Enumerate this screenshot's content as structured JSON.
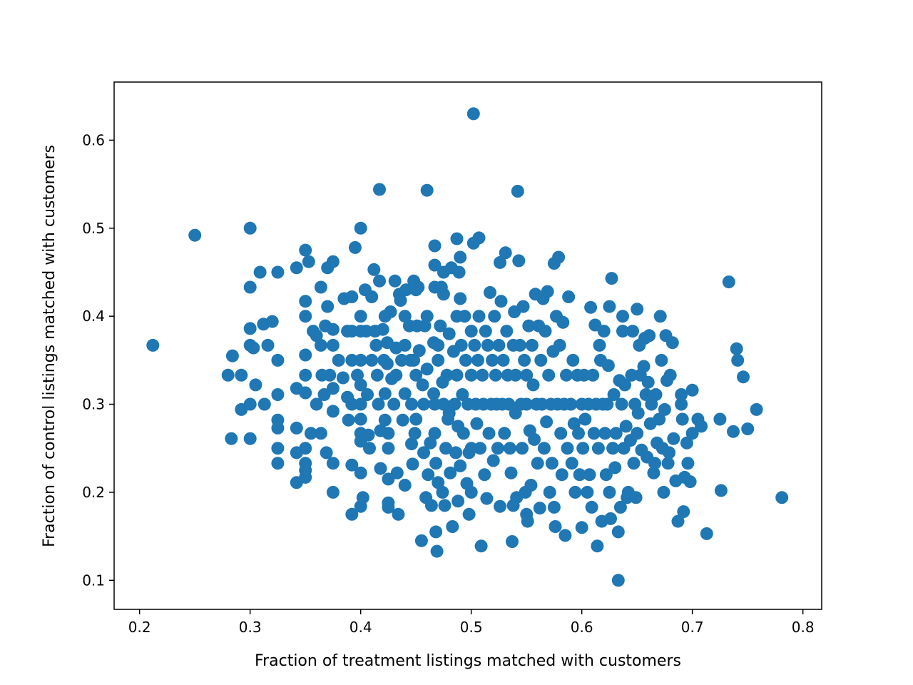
{
  "chart_data": {
    "type": "scatter",
    "xlabel": "Fraction of treatment listings matched with customers",
    "ylabel": "Fraction of control listings matched with customers",
    "xlim": [
      0.177,
      0.817
    ],
    "ylim": [
      0.067,
      0.666
    ],
    "xticks": [
      "0.2",
      "0.3",
      "0.4",
      "0.5",
      "0.6",
      "0.7",
      "0.8"
    ],
    "yticks": [
      "0.1",
      "0.2",
      "0.3",
      "0.4",
      "0.5",
      "0.6"
    ],
    "grid": false,
    "marker_color": "#1f77b4",
    "points": [
      [
        0.212,
        0.367
      ],
      [
        0.25,
        0.492
      ],
      [
        0.28,
        0.333
      ],
      [
        0.283,
        0.261
      ],
      [
        0.284,
        0.355
      ],
      [
        0.292,
        0.294
      ],
      [
        0.292,
        0.333
      ],
      [
        0.3,
        0.5
      ],
      [
        0.3,
        0.433
      ],
      [
        0.3,
        0.386
      ],
      [
        0.3,
        0.367
      ],
      [
        0.3,
        0.3
      ],
      [
        0.3,
        0.261
      ],
      [
        0.303,
        0.364
      ],
      [
        0.305,
        0.322
      ],
      [
        0.309,
        0.45
      ],
      [
        0.312,
        0.391
      ],
      [
        0.313,
        0.3
      ],
      [
        0.316,
        0.367
      ],
      [
        0.32,
        0.394
      ],
      [
        0.325,
        0.45
      ],
      [
        0.325,
        0.35
      ],
      [
        0.325,
        0.311
      ],
      [
        0.325,
        0.282
      ],
      [
        0.325,
        0.273
      ],
      [
        0.325,
        0.25
      ],
      [
        0.325,
        0.233
      ],
      [
        0.342,
        0.455
      ],
      [
        0.342,
        0.318
      ],
      [
        0.342,
        0.273
      ],
      [
        0.342,
        0.245
      ],
      [
        0.342,
        0.211
      ],
      [
        0.35,
        0.475
      ],
      [
        0.35,
        0.417
      ],
      [
        0.35,
        0.4
      ],
      [
        0.35,
        0.356
      ],
      [
        0.35,
        0.333
      ],
      [
        0.35,
        0.313
      ],
      [
        0.35,
        0.25
      ],
      [
        0.35,
        0.233
      ],
      [
        0.35,
        0.225
      ],
      [
        0.35,
        0.217
      ],
      [
        0.353,
        0.462
      ],
      [
        0.355,
        0.267
      ],
      [
        0.357,
        0.383
      ],
      [
        0.36,
        0.3
      ],
      [
        0.36,
        0.378
      ],
      [
        0.364,
        0.367
      ],
      [
        0.364,
        0.267
      ],
      [
        0.364,
        0.433
      ],
      [
        0.365,
        0.333
      ],
      [
        0.367,
        0.311
      ],
      [
        0.368,
        0.389
      ],
      [
        0.369,
        0.245
      ],
      [
        0.37,
        0.455
      ],
      [
        0.37,
        0.411
      ],
      [
        0.372,
        0.333
      ],
      [
        0.375,
        0.462
      ],
      [
        0.375,
        0.385
      ],
      [
        0.375,
        0.367
      ],
      [
        0.375,
        0.318
      ],
      [
        0.375,
        0.292
      ],
      [
        0.375,
        0.233
      ],
      [
        0.375,
        0.2
      ],
      [
        0.38,
        0.35
      ],
      [
        0.384,
        0.33
      ],
      [
        0.385,
        0.42
      ],
      [
        0.388,
        0.383
      ],
      [
        0.388,
        0.308
      ],
      [
        0.389,
        0.282
      ],
      [
        0.392,
        0.422
      ],
      [
        0.392,
        0.383
      ],
      [
        0.392,
        0.35
      ],
      [
        0.392,
        0.3
      ],
      [
        0.392,
        0.231
      ],
      [
        0.392,
        0.175
      ],
      [
        0.395,
        0.478
      ],
      [
        0.397,
        0.333
      ],
      [
        0.4,
        0.5
      ],
      [
        0.4,
        0.4
      ],
      [
        0.4,
        0.383
      ],
      [
        0.4,
        0.35
      ],
      [
        0.4,
        0.322
      ],
      [
        0.4,
        0.3
      ],
      [
        0.4,
        0.283
      ],
      [
        0.4,
        0.267
      ],
      [
        0.4,
        0.258
      ],
      [
        0.4,
        0.222
      ],
      [
        0.4,
        0.184
      ],
      [
        0.402,
        0.194
      ],
      [
        0.404,
        0.43
      ],
      [
        0.405,
        0.383
      ],
      [
        0.406,
        0.311
      ],
      [
        0.407,
        0.265
      ],
      [
        0.408,
        0.25
      ],
      [
        0.41,
        0.422
      ],
      [
        0.41,
        0.35
      ],
      [
        0.412,
        0.453
      ],
      [
        0.413,
        0.383
      ],
      [
        0.414,
        0.367
      ],
      [
        0.415,
        0.333
      ],
      [
        0.416,
        0.3
      ],
      [
        0.417,
        0.544
      ],
      [
        0.417,
        0.44
      ],
      [
        0.418,
        0.27
      ],
      [
        0.418,
        0.227
      ],
      [
        0.42,
        0.385
      ],
      [
        0.421,
        0.35
      ],
      [
        0.422,
        0.4
      ],
      [
        0.422,
        0.312
      ],
      [
        0.422,
        0.282
      ],
      [
        0.424,
        0.37
      ],
      [
        0.424,
        0.346
      ],
      [
        0.425,
        0.267
      ],
      [
        0.425,
        0.25
      ],
      [
        0.425,
        0.215
      ],
      [
        0.425,
        0.188
      ],
      [
        0.425,
        0.183
      ],
      [
        0.427,
        0.405
      ],
      [
        0.428,
        0.329
      ],
      [
        0.43,
        0.3
      ],
      [
        0.431,
        0.44
      ],
      [
        0.432,
        0.364
      ],
      [
        0.432,
        0.333
      ],
      [
        0.433,
        0.222
      ],
      [
        0.434,
        0.175
      ],
      [
        0.435,
        0.425
      ],
      [
        0.436,
        0.418
      ],
      [
        0.437,
        0.35
      ],
      [
        0.438,
        0.282
      ],
      [
        0.44,
        0.4
      ],
      [
        0.44,
        0.367
      ],
      [
        0.44,
        0.312
      ],
      [
        0.44,
        0.208
      ],
      [
        0.441,
        0.43
      ],
      [
        0.444,
        0.389
      ],
      [
        0.445,
        0.35
      ],
      [
        0.446,
        0.3
      ],
      [
        0.446,
        0.255
      ],
      [
        0.447,
        0.232
      ],
      [
        0.448,
        0.44
      ],
      [
        0.448,
        0.35
      ],
      [
        0.449,
        0.267
      ],
      [
        0.45,
        0.43
      ],
      [
        0.45,
        0.333
      ],
      [
        0.45,
        0.283
      ],
      [
        0.451,
        0.389
      ],
      [
        0.452,
        0.433
      ],
      [
        0.453,
        0.361
      ],
      [
        0.455,
        0.145
      ],
      [
        0.456,
        0.322
      ],
      [
        0.457,
        0.3
      ],
      [
        0.457,
        0.245
      ],
      [
        0.458,
        0.389
      ],
      [
        0.459,
        0.194
      ],
      [
        0.46,
        0.543
      ],
      [
        0.46,
        0.4
      ],
      [
        0.46,
        0.34
      ],
      [
        0.461,
        0.22
      ],
      [
        0.463,
        0.256
      ],
      [
        0.464,
        0.185
      ],
      [
        0.466,
        0.37
      ],
      [
        0.466,
        0.312
      ],
      [
        0.467,
        0.48
      ],
      [
        0.467,
        0.458
      ],
      [
        0.467,
        0.433
      ],
      [
        0.467,
        0.3
      ],
      [
        0.467,
        0.267
      ],
      [
        0.468,
        0.233
      ],
      [
        0.468,
        0.155
      ],
      [
        0.469,
        0.133
      ],
      [
        0.47,
        0.367
      ],
      [
        0.47,
        0.35
      ],
      [
        0.47,
        0.211
      ],
      [
        0.472,
        0.389
      ],
      [
        0.473,
        0.433
      ],
      [
        0.474,
        0.325
      ],
      [
        0.474,
        0.2
      ],
      [
        0.475,
        0.45
      ],
      [
        0.475,
        0.425
      ],
      [
        0.475,
        0.3
      ],
      [
        0.476,
        0.185
      ],
      [
        0.477,
        0.25
      ],
      [
        0.478,
        0.333
      ],
      [
        0.479,
        0.283
      ],
      [
        0.48,
        0.38
      ],
      [
        0.48,
        0.29
      ],
      [
        0.481,
        0.222
      ],
      [
        0.482,
        0.455
      ],
      [
        0.483,
        0.161
      ],
      [
        0.484,
        0.36
      ],
      [
        0.485,
        0.3
      ],
      [
        0.486,
        0.245
      ],
      [
        0.487,
        0.488
      ],
      [
        0.487,
        0.4
      ],
      [
        0.487,
        0.333
      ],
      [
        0.488,
        0.275
      ],
      [
        0.488,
        0.19
      ],
      [
        0.489,
        0.45
      ],
      [
        0.49,
        0.467
      ],
      [
        0.49,
        0.42
      ],
      [
        0.49,
        0.23
      ],
      [
        0.491,
        0.367
      ],
      [
        0.492,
        0.311
      ],
      [
        0.493,
        0.267
      ],
      [
        0.494,
        0.4
      ],
      [
        0.495,
        0.35
      ],
      [
        0.496,
        0.21
      ],
      [
        0.497,
        0.3
      ],
      [
        0.498,
        0.245
      ],
      [
        0.498,
        0.175
      ],
      [
        0.5,
        0.383
      ],
      [
        0.5,
        0.333
      ],
      [
        0.5,
        0.25
      ],
      [
        0.5,
        0.2
      ],
      [
        0.502,
        0.63
      ],
      [
        0.502,
        0.483
      ],
      [
        0.503,
        0.367
      ],
      [
        0.504,
        0.3
      ],
      [
        0.505,
        0.278
      ],
      [
        0.506,
        0.35
      ],
      [
        0.507,
        0.489
      ],
      [
        0.507,
        0.4
      ],
      [
        0.508,
        0.25
      ],
      [
        0.509,
        0.139
      ],
      [
        0.51,
        0.333
      ],
      [
        0.511,
        0.3
      ],
      [
        0.512,
        0.22
      ],
      [
        0.513,
        0.383
      ],
      [
        0.514,
        0.193
      ],
      [
        0.515,
        0.367
      ],
      [
        0.516,
        0.267
      ],
      [
        0.517,
        0.427
      ],
      [
        0.518,
        0.3
      ],
      [
        0.519,
        0.35
      ],
      [
        0.52,
        0.236
      ],
      [
        0.521,
        0.4
      ],
      [
        0.522,
        0.333
      ],
      [
        0.523,
        0.3
      ],
      [
        0.524,
        0.25
      ],
      [
        0.525,
        0.367
      ],
      [
        0.526,
        0.461
      ],
      [
        0.526,
        0.184
      ],
      [
        0.527,
        0.417
      ],
      [
        0.528,
        0.3
      ],
      [
        0.529,
        0.35
      ],
      [
        0.53,
        0.267
      ],
      [
        0.531,
        0.472
      ],
      [
        0.532,
        0.383
      ],
      [
        0.533,
        0.333
      ],
      [
        0.534,
        0.3
      ],
      [
        0.535,
        0.25
      ],
      [
        0.536,
        0.222
      ],
      [
        0.537,
        0.144
      ],
      [
        0.538,
        0.367
      ],
      [
        0.538,
        0.185
      ],
      [
        0.539,
        0.405
      ],
      [
        0.54,
        0.333
      ],
      [
        0.54,
        0.29
      ],
      [
        0.541,
        0.194
      ],
      [
        0.542,
        0.542
      ],
      [
        0.543,
        0.463
      ],
      [
        0.544,
        0.367
      ],
      [
        0.545,
        0.3
      ],
      [
        0.546,
        0.25
      ],
      [
        0.547,
        0.411
      ],
      [
        0.548,
        0.35
      ],
      [
        0.549,
        0.2
      ],
      [
        0.55,
        0.333
      ],
      [
        0.55,
        0.3
      ],
      [
        0.55,
        0.175
      ],
      [
        0.551,
        0.167
      ],
      [
        0.552,
        0.389
      ],
      [
        0.553,
        0.27
      ],
      [
        0.554,
        0.208
      ],
      [
        0.555,
        0.367
      ],
      [
        0.556,
        0.322
      ],
      [
        0.557,
        0.26
      ],
      [
        0.558,
        0.425
      ],
      [
        0.559,
        0.3
      ],
      [
        0.56,
        0.233
      ],
      [
        0.561,
        0.389
      ],
      [
        0.562,
        0.182
      ],
      [
        0.563,
        0.35
      ],
      [
        0.564,
        0.3
      ],
      [
        0.565,
        0.42
      ],
      [
        0.566,
        0.25
      ],
      [
        0.567,
        0.383
      ],
      [
        0.568,
        0.28
      ],
      [
        0.569,
        0.428
      ],
      [
        0.57,
        0.333
      ],
      [
        0.571,
        0.2
      ],
      [
        0.572,
        0.3
      ],
      [
        0.573,
        0.233
      ],
      [
        0.574,
        0.36
      ],
      [
        0.575,
        0.46
      ],
      [
        0.575,
        0.183
      ],
      [
        0.576,
        0.161
      ],
      [
        0.577,
        0.4
      ],
      [
        0.578,
        0.3
      ],
      [
        0.579,
        0.467
      ],
      [
        0.58,
        0.367
      ],
      [
        0.581,
        0.267
      ],
      [
        0.582,
        0.22
      ],
      [
        0.583,
        0.393
      ],
      [
        0.584,
        0.3
      ],
      [
        0.585,
        0.151
      ],
      [
        0.586,
        0.333
      ],
      [
        0.587,
        0.25
      ],
      [
        0.588,
        0.422
      ],
      [
        0.59,
        0.3
      ],
      [
        0.591,
        0.233
      ],
      [
        0.592,
        0.35
      ],
      [
        0.593,
        0.278
      ],
      [
        0.594,
        0.2
      ],
      [
        0.596,
        0.333
      ],
      [
        0.597,
        0.267
      ],
      [
        0.598,
        0.22
      ],
      [
        0.6,
        0.3
      ],
      [
        0.6,
        0.16
      ],
      [
        0.601,
        0.25
      ],
      [
        0.602,
        0.333
      ],
      [
        0.603,
        0.283
      ],
      [
        0.605,
        0.2
      ],
      [
        0.606,
        0.3
      ],
      [
        0.607,
        0.22
      ],
      [
        0.608,
        0.41
      ],
      [
        0.609,
        0.183
      ],
      [
        0.61,
        0.333
      ],
      [
        0.611,
        0.267
      ],
      [
        0.612,
        0.39
      ],
      [
        0.613,
        0.3
      ],
      [
        0.614,
        0.139
      ],
      [
        0.615,
        0.25
      ],
      [
        0.616,
        0.367
      ],
      [
        0.617,
        0.35
      ],
      [
        0.618,
        0.167
      ],
      [
        0.619,
        0.3
      ],
      [
        0.62,
        0.383
      ],
      [
        0.621,
        0.267
      ],
      [
        0.622,
        0.22
      ],
      [
        0.623,
        0.3
      ],
      [
        0.624,
        0.344
      ],
      [
        0.625,
        0.411
      ],
      [
        0.625,
        0.2
      ],
      [
        0.626,
        0.17
      ],
      [
        0.627,
        0.443
      ],
      [
        0.628,
        0.25
      ],
      [
        0.629,
        0.311
      ],
      [
        0.63,
        0.228
      ],
      [
        0.631,
        0.267
      ],
      [
        0.633,
        0.1
      ],
      [
        0.633,
        0.155
      ],
      [
        0.634,
        0.327
      ],
      [
        0.635,
        0.183
      ],
      [
        0.636,
        0.3
      ],
      [
        0.637,
        0.4
      ],
      [
        0.637,
        0.383
      ],
      [
        0.638,
        0.25
      ],
      [
        0.639,
        0.322
      ],
      [
        0.64,
        0.275
      ],
      [
        0.641,
        0.194
      ],
      [
        0.642,
        0.2
      ],
      [
        0.644,
        0.259
      ],
      [
        0.645,
        0.333
      ],
      [
        0.646,
        0.383
      ],
      [
        0.647,
        0.233
      ],
      [
        0.648,
        0.3
      ],
      [
        0.649,
        0.194
      ],
      [
        0.65,
        0.408
      ],
      [
        0.65,
        0.267
      ],
      [
        0.651,
        0.29
      ],
      [
        0.652,
        0.367
      ],
      [
        0.653,
        0.333
      ],
      [
        0.654,
        0.248
      ],
      [
        0.656,
        0.343
      ],
      [
        0.657,
        0.375
      ],
      [
        0.658,
        0.311
      ],
      [
        0.659,
        0.24
      ],
      [
        0.66,
        0.325
      ],
      [
        0.661,
        0.378
      ],
      [
        0.662,
        0.278
      ],
      [
        0.663,
        0.3
      ],
      [
        0.665,
        0.222
      ],
      [
        0.666,
        0.233
      ],
      [
        0.667,
        0.311
      ],
      [
        0.668,
        0.256
      ],
      [
        0.67,
        0.283
      ],
      [
        0.671,
        0.4
      ],
      [
        0.672,
        0.35
      ],
      [
        0.673,
        0.25
      ],
      [
        0.674,
        0.2
      ],
      [
        0.675,
        0.294
      ],
      [
        0.676,
        0.378
      ],
      [
        0.677,
        0.327
      ],
      [
        0.678,
        0.233
      ],
      [
        0.679,
        0.245
      ],
      [
        0.68,
        0.333
      ],
      [
        0.682,
        0.37
      ],
      [
        0.683,
        0.261
      ],
      [
        0.685,
        0.213
      ],
      [
        0.687,
        0.167
      ],
      [
        0.69,
        0.311
      ],
      [
        0.69,
        0.3
      ],
      [
        0.691,
        0.283
      ],
      [
        0.692,
        0.178
      ],
      [
        0.693,
        0.217
      ],
      [
        0.695,
        0.256
      ],
      [
        0.696,
        0.233
      ],
      [
        0.698,
        0.212
      ],
      [
        0.7,
        0.316
      ],
      [
        0.7,
        0.267
      ],
      [
        0.705,
        0.283
      ],
      [
        0.708,
        0.275
      ],
      [
        0.713,
        0.153
      ],
      [
        0.725,
        0.283
      ],
      [
        0.726,
        0.202
      ],
      [
        0.733,
        0.439
      ],
      [
        0.737,
        0.269
      ],
      [
        0.74,
        0.363
      ],
      [
        0.741,
        0.35
      ],
      [
        0.746,
        0.331
      ],
      [
        0.75,
        0.272
      ],
      [
        0.758,
        0.294
      ],
      [
        0.781,
        0.194
      ]
    ]
  }
}
